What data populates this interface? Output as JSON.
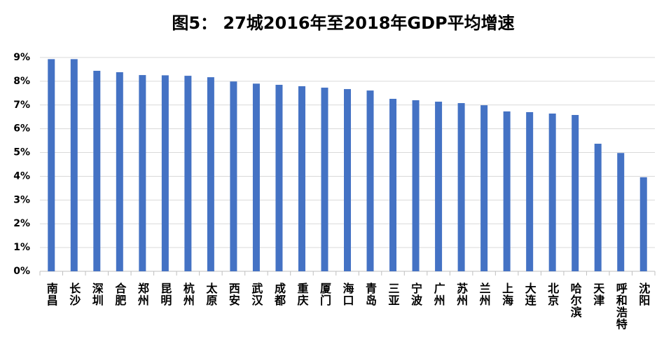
{
  "chart_data": {
    "type": "bar",
    "title": "图5： 27城2016年至2018年GDP平均增速",
    "categories": [
      "南昌",
      "长沙",
      "深圳",
      "合肥",
      "郑州",
      "昆明",
      "杭州",
      "太原",
      "西安",
      "武汉",
      "成都",
      "重庆",
      "厦门",
      "海口",
      "青岛",
      "三亚",
      "宁波",
      "广州",
      "苏州",
      "兰州",
      "上海",
      "大连",
      "北京",
      "哈尔滨",
      "天津",
      "呼和浩特",
      "沈阳"
    ],
    "values": [
      8.93,
      8.93,
      8.44,
      8.38,
      8.26,
      8.25,
      8.23,
      8.17,
      7.99,
      7.9,
      7.85,
      7.79,
      7.73,
      7.67,
      7.61,
      7.26,
      7.2,
      7.14,
      7.08,
      6.99,
      6.73,
      6.7,
      6.64,
      6.58,
      5.37,
      4.98,
      3.96
    ],
    "color": "#4472c4",
    "ylim": [
      0,
      9
    ],
    "yticks": [
      {
        "value": 0,
        "label": "0%"
      },
      {
        "value": 1,
        "label": "1%"
      },
      {
        "value": 2,
        "label": "2%"
      },
      {
        "value": 3,
        "label": "3%"
      },
      {
        "value": 4,
        "label": "4%"
      },
      {
        "value": 5,
        "label": "5%"
      },
      {
        "value": 6,
        "label": "6%"
      },
      {
        "value": 7,
        "label": "7%"
      },
      {
        "value": 8,
        "label": "8%"
      },
      {
        "value": 9,
        "label": "9%"
      }
    ],
    "grid": true
  }
}
